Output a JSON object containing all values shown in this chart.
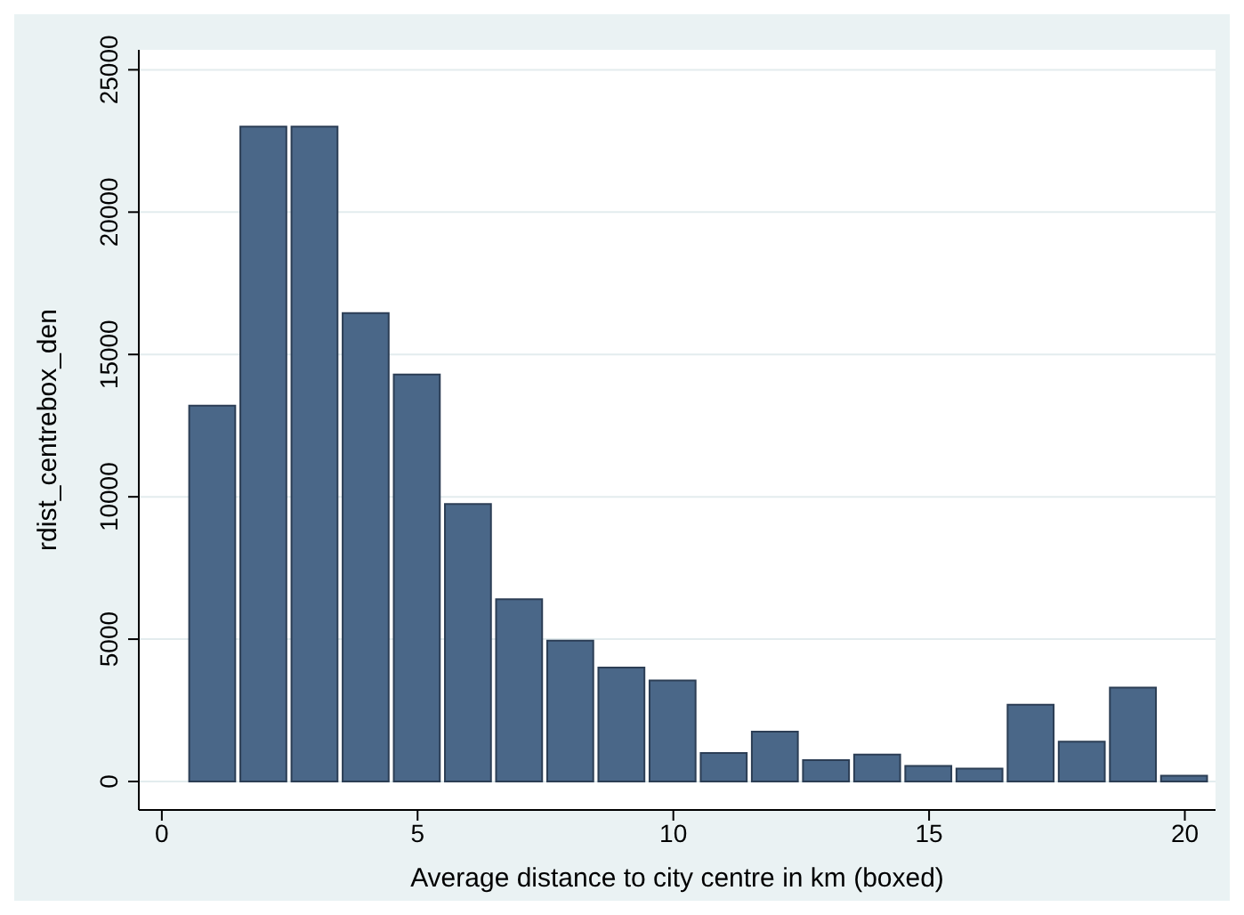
{
  "chart_data": {
    "type": "histogram",
    "xlabel": "Average distance to city centre in km (boxed)",
    "ylabel": "rdist_centrebox_den",
    "bins": [
      0.5,
      1.5,
      2.5,
      3.5,
      4.5,
      5.5,
      6.5,
      7.5,
      8.5,
      9.5,
      10.5,
      11.5,
      12.5,
      13.5,
      14.5,
      15.5,
      16.5,
      17.5,
      18.5,
      19.5,
      20.5
    ],
    "values": [
      13200,
      23000,
      23000,
      16450,
      14300,
      9750,
      6400,
      4950,
      4000,
      3550,
      1000,
      1750,
      750,
      950,
      550,
      450,
      2700,
      1400,
      3300,
      200
    ],
    "color": "#4a6788",
    "xlim": [
      -0.45,
      20.6
    ],
    "xticks": [
      0,
      5,
      10,
      15,
      20
    ],
    "ylim": [
      -1000,
      25700
    ],
    "yticks": [
      0,
      5000,
      10000,
      15000,
      20000,
      25000
    ],
    "grid": "y",
    "legend": false
  }
}
